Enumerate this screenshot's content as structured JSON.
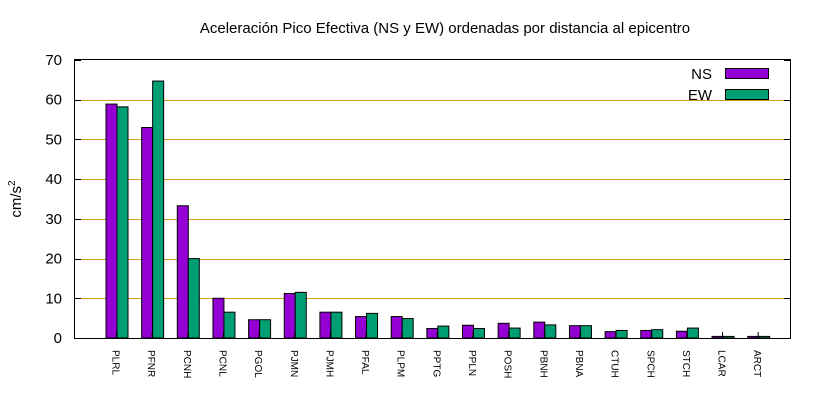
{
  "chart_data": {
    "type": "bar",
    "title": "Aceleración Pico Efectiva (NS y EW) ordenadas por distancia al epicentro",
    "xlabel": "",
    "ylabel_base": "cm/s",
    "ylabel_exp": "2",
    "ylim": [
      0,
      70
    ],
    "yticks": [
      "0",
      "10",
      "20",
      "30",
      "40",
      "50",
      "60",
      "70"
    ],
    "grid": true,
    "legend_position": "top-right",
    "categories": [
      "PLRL",
      "PFNR",
      "PCNH",
      "PCNL",
      "PGOL",
      "PJMN",
      "PJMH",
      "PFAL",
      "PLPM",
      "PPTG",
      "PPLN",
      "POSH",
      "PBNH",
      "PBNA",
      "CTUH",
      "SPCH",
      "STCH",
      "LCAR",
      "ARCT"
    ],
    "series": [
      {
        "name": "NS",
        "color": "#9400d3",
        "values": [
          58.9,
          53.0,
          33.3,
          10.0,
          4.6,
          11.2,
          6.5,
          5.4,
          5.4,
          2.4,
          3.2,
          3.7,
          4.0,
          3.1,
          1.6,
          1.9,
          1.7,
          0.4,
          0.4
        ]
      },
      {
        "name": "EW",
        "color": "#009e73",
        "values": [
          58.2,
          64.7,
          20.0,
          6.5,
          4.6,
          11.5,
          6.5,
          6.2,
          4.9,
          3.0,
          2.4,
          2.5,
          3.3,
          3.1,
          1.9,
          2.1,
          2.5,
          0.4,
          0.4
        ]
      }
    ],
    "grid_color": "#d4a017"
  }
}
